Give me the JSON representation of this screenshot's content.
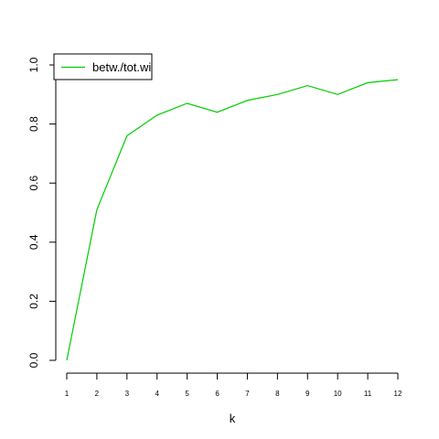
{
  "chart_data": {
    "type": "line",
    "xlabel": "k",
    "ylabel": "",
    "x": [
      1,
      2,
      3,
      4,
      5,
      6,
      7,
      8,
      9,
      10,
      11,
      12
    ],
    "xticks": [
      "1",
      "2",
      "3",
      "4",
      "5",
      "6",
      "7",
      "8",
      "9",
      "10",
      "11",
      "12"
    ],
    "yticks": [
      "0.0",
      "0.2",
      "0.4",
      "0.6",
      "0.8",
      "1.0"
    ],
    "xlim": [
      1,
      12
    ],
    "ylim": [
      0,
      1
    ],
    "grid": false,
    "legend_position": "top-left",
    "series": [
      {
        "name": "betw./tot.wi",
        "color": "#00cc00",
        "values": [
          0.0,
          0.51,
          0.76,
          0.83,
          0.87,
          0.84,
          0.88,
          0.9,
          0.93,
          0.9,
          0.94,
          0.95
        ]
      }
    ]
  }
}
